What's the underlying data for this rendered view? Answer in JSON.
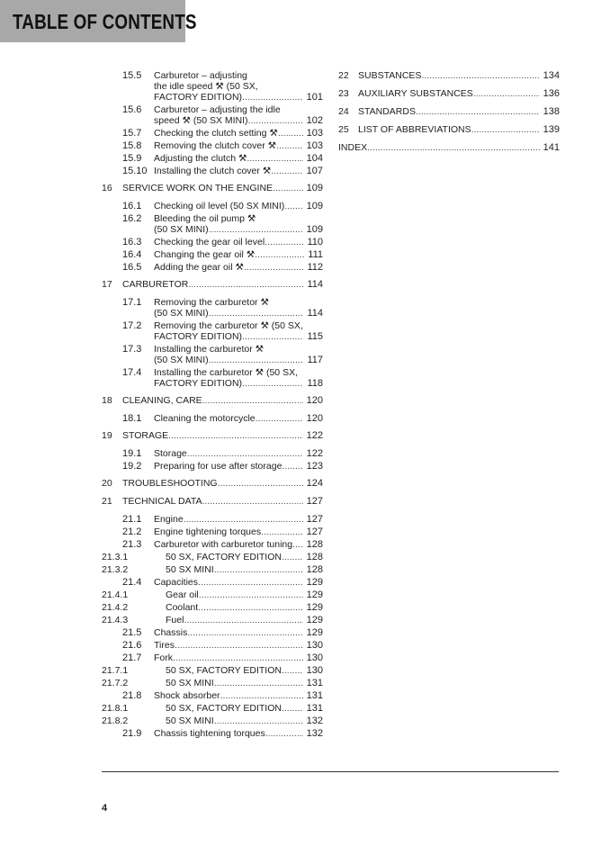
{
  "header": {
    "title": "TABLE OF CONTENTS"
  },
  "page_number": "4",
  "left": [
    {
      "k": "sub",
      "num": "15.5",
      "lines": [
        "Carburetor – adjusting",
        "the idle speed ⚒ (50 SX,",
        "FACTORY EDITION)"
      ],
      "page": "101"
    },
    {
      "k": "sub",
      "num": "15.6",
      "lines": [
        "Carburetor – adjusting the idle",
        "speed ⚒ (50 SX MINI)"
      ],
      "page": "102"
    },
    {
      "k": "sub",
      "num": "15.7",
      "lines": [
        "Checking the clutch setting ⚒"
      ],
      "page": "103"
    },
    {
      "k": "sub",
      "num": "15.8",
      "lines": [
        "Removing the clutch cover ⚒"
      ],
      "page": "103"
    },
    {
      "k": "sub",
      "num": "15.9",
      "lines": [
        "Adjusting the clutch ⚒"
      ],
      "page": "104"
    },
    {
      "k": "sub",
      "num": "15.10",
      "lines": [
        "Installing the clutch cover ⚒"
      ],
      "page": "107"
    },
    {
      "k": "ch",
      "num": "16",
      "lines": [
        "SERVICE WORK ON THE ENGINE"
      ],
      "page": "109"
    },
    {
      "k": "sub",
      "num": "16.1",
      "lines": [
        "Checking oil level (50 SX MINI)"
      ],
      "page": "109"
    },
    {
      "k": "sub",
      "num": "16.2",
      "lines": [
        "Bleeding the oil pump ⚒",
        "(50 SX MINI)"
      ],
      "page": "109"
    },
    {
      "k": "sub",
      "num": "16.3",
      "lines": [
        "Checking the gear oil level"
      ],
      "page": "110"
    },
    {
      "k": "sub",
      "num": "16.4",
      "lines": [
        "Changing the gear oil ⚒"
      ],
      "page": "111"
    },
    {
      "k": "sub",
      "num": "16.5",
      "lines": [
        "Adding the gear oil ⚒"
      ],
      "page": "112"
    },
    {
      "k": "ch",
      "num": "17",
      "lines": [
        "CARBURETOR"
      ],
      "page": "114"
    },
    {
      "k": "sub",
      "num": "17.1",
      "lines": [
        "Removing the carburetor ⚒",
        "(50 SX MINI)"
      ],
      "page": "114"
    },
    {
      "k": "sub",
      "num": "17.2",
      "lines": [
        "Removing the carburetor ⚒ (50 SX,",
        "FACTORY EDITION)"
      ],
      "page": "115"
    },
    {
      "k": "sub",
      "num": "17.3",
      "lines": [
        "Installing the carburetor ⚒",
        "(50 SX MINI)"
      ],
      "page": "117"
    },
    {
      "k": "sub",
      "num": "17.4",
      "lines": [
        "Installing the carburetor ⚒ (50 SX,",
        "FACTORY EDITION)"
      ],
      "page": "118"
    },
    {
      "k": "ch",
      "num": "18",
      "lines": [
        "CLEANING, CARE"
      ],
      "page": "120"
    },
    {
      "k": "sub",
      "num": "18.1",
      "lines": [
        "Cleaning the motorcycle"
      ],
      "page": "120"
    },
    {
      "k": "ch",
      "num": "19",
      "lines": [
        "STORAGE"
      ],
      "page": "122"
    },
    {
      "k": "sub",
      "num": "19.1",
      "lines": [
        "Storage"
      ],
      "page": "122"
    },
    {
      "k": "sub",
      "num": "19.2",
      "lines": [
        "Preparing for use after storage"
      ],
      "page": "123"
    },
    {
      "k": "ch",
      "num": "20",
      "lines": [
        "TROUBLESHOOTING"
      ],
      "page": "124"
    },
    {
      "k": "ch",
      "num": "21",
      "lines": [
        "TECHNICAL DATA"
      ],
      "page": "127"
    },
    {
      "k": "sub",
      "num": "21.1",
      "lines": [
        "Engine"
      ],
      "page": "127"
    },
    {
      "k": "sub",
      "num": "21.2",
      "lines": [
        "Engine tightening torques"
      ],
      "page": "127"
    },
    {
      "k": "sub",
      "num": "21.3",
      "lines": [
        "Carburetor with carburetor tuning"
      ],
      "page": "128"
    },
    {
      "k": "ss",
      "num": "21.3.1",
      "lines": [
        "50 SX, FACTORY EDITION"
      ],
      "page": "128"
    },
    {
      "k": "ss",
      "num": "21.3.2",
      "lines": [
        "50 SX MINI"
      ],
      "page": "128"
    },
    {
      "k": "sub",
      "num": "21.4",
      "lines": [
        "Capacities"
      ],
      "page": "129"
    },
    {
      "k": "ss",
      "num": "21.4.1",
      "lines": [
        "Gear oil"
      ],
      "page": "129"
    },
    {
      "k": "ss",
      "num": "21.4.2",
      "lines": [
        "Coolant"
      ],
      "page": "129"
    },
    {
      "k": "ss",
      "num": "21.4.3",
      "lines": [
        "Fuel"
      ],
      "page": "129"
    },
    {
      "k": "sub",
      "num": "21.5",
      "lines": [
        "Chassis"
      ],
      "page": "129"
    },
    {
      "k": "sub",
      "num": "21.6",
      "lines": [
        "Tires"
      ],
      "page": "130"
    },
    {
      "k": "sub",
      "num": "21.7",
      "lines": [
        "Fork"
      ],
      "page": "130"
    },
    {
      "k": "ss",
      "num": "21.7.1",
      "lines": [
        "50 SX, FACTORY EDITION"
      ],
      "page": "130"
    },
    {
      "k": "ss",
      "num": "21.7.2",
      "lines": [
        "50 SX MINI"
      ],
      "page": "131"
    },
    {
      "k": "sub",
      "num": "21.8",
      "lines": [
        "Shock absorber"
      ],
      "page": "131"
    },
    {
      "k": "ss",
      "num": "21.8.1",
      "lines": [
        "50 SX, FACTORY EDITION"
      ],
      "page": "131"
    },
    {
      "k": "ss",
      "num": "21.8.2",
      "lines": [
        "50 SX MINI"
      ],
      "page": "132"
    },
    {
      "k": "sub",
      "num": "21.9",
      "lines": [
        "Chassis tightening torques"
      ],
      "page": "132"
    }
  ],
  "right": [
    {
      "k": "rc",
      "num": "22",
      "lines": [
        "SUBSTANCES"
      ],
      "page": "134"
    },
    {
      "k": "rc",
      "num": "23",
      "lines": [
        "AUXILIARY SUBSTANCES"
      ],
      "page": "136"
    },
    {
      "k": "rc",
      "num": "24",
      "lines": [
        "STANDARDS"
      ],
      "page": "138"
    },
    {
      "k": "rc",
      "num": "25",
      "lines": [
        "LIST OF ABBREVIATIONS"
      ],
      "page": "139"
    },
    {
      "k": "idx",
      "num": "",
      "lines": [
        "INDEX"
      ],
      "page": "141"
    }
  ]
}
